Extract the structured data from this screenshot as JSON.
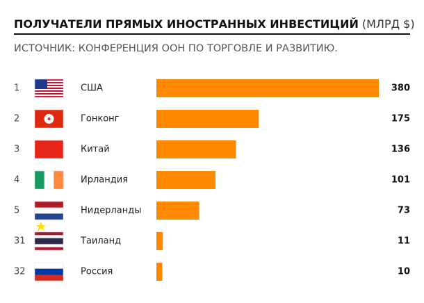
{
  "chart_data": {
    "type": "bar",
    "orientation": "horizontal",
    "title": "ПОЛУЧАТЕЛИ ПРЯМЫХ ИНОСТРАННЫХ ИНВЕСТИЦИЙ",
    "title_unit": "(МЛРД $)",
    "subtitle": "ИСТОЧНИК: КОНФЕРЕНЦИЯ ООН ПО ТОРГОВЛЕ И РАЗВИТИЮ.",
    "ranks": [
      "1",
      "2",
      "3",
      "4",
      "5",
      "31",
      "32"
    ],
    "categories": [
      "США",
      "Гонконг",
      "Китай",
      "Ирландия",
      "Нидерланды",
      "Таиланд",
      "Россия"
    ],
    "values": [
      380,
      175,
      136,
      101,
      73,
      11,
      10
    ],
    "color": "#ff8a00"
  }
}
